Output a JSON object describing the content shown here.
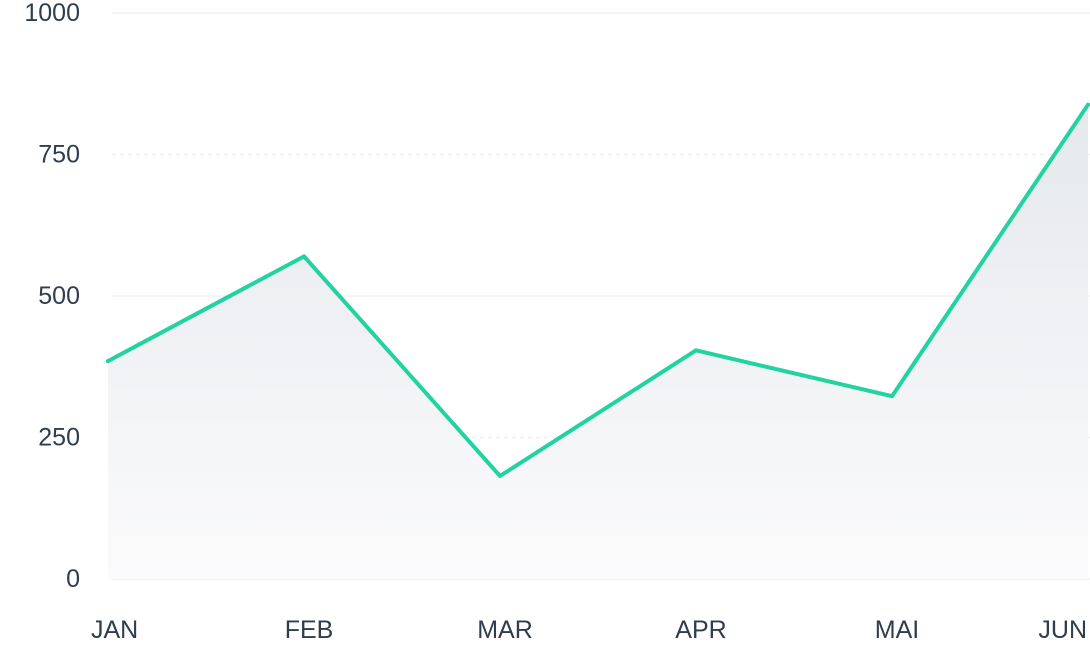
{
  "chart_data": {
    "type": "area",
    "title": "",
    "xlabel": "",
    "ylabel": "",
    "categories": [
      "JAN",
      "FEB",
      "MAR",
      "APR",
      "MAI",
      "JUN"
    ],
    "series": [
      {
        "values": [
          385,
          570,
          182,
          404,
          323,
          838
        ]
      }
    ],
    "ylim": [
      0,
      1000
    ],
    "yticks": [
      "0",
      "250",
      "500",
      "750",
      "1000"
    ],
    "grid": true,
    "legend": "none",
    "colors": {
      "line": "#22d3a0",
      "fill_top": "#e5e8ec",
      "fill_bottom": "#fbfbfc",
      "grid": "#eef0f3",
      "tick_text": "#2f3d4e"
    }
  }
}
